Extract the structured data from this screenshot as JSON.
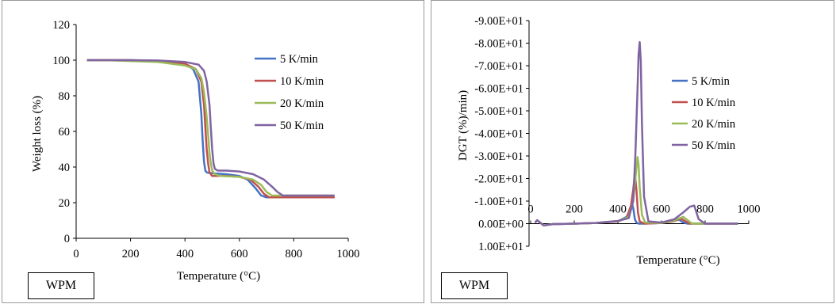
{
  "chart_data": [
    {
      "type": "line",
      "title": "",
      "xlabel": "Temperature (°C)",
      "ylabel": "Weight loss (%)",
      "xlim": [
        0,
        1000
      ],
      "ylim": [
        0,
        120
      ],
      "xticks": [
        "0",
        "200",
        "400",
        "600",
        "800",
        "1000"
      ],
      "yticks": [
        "0",
        "20",
        "40",
        "60",
        "80",
        "100",
        "120"
      ],
      "grid": false,
      "legend_position": "top-right",
      "sample_label": "WPM",
      "series": [
        {
          "name": "5 K/min",
          "color": "#4472C4",
          "x": [
            40,
            100,
            200,
            300,
            400,
            430,
            450,
            460,
            465,
            470,
            475,
            480,
            485,
            500,
            550,
            600,
            630,
            660,
            680,
            700,
            720,
            800,
            900,
            950
          ],
          "y": [
            100,
            100,
            100,
            99.5,
            98,
            95,
            88,
            70,
            55,
            43,
            38,
            37,
            36.8,
            36.5,
            36,
            35,
            33,
            28,
            24,
            23,
            23,
            23,
            23,
            23
          ]
        },
        {
          "name": "10 K/min",
          "color": "#C0504D",
          "x": [
            40,
            100,
            200,
            300,
            400,
            440,
            460,
            470,
            475,
            480,
            485,
            490,
            500,
            520,
            550,
            600,
            640,
            670,
            690,
            710,
            730,
            800,
            900,
            950
          ],
          "y": [
            100,
            100,
            100,
            99.5,
            98,
            95,
            88,
            75,
            62,
            50,
            42,
            37,
            35,
            35,
            35,
            34.5,
            33,
            29,
            25,
            23,
            23,
            23,
            23,
            23
          ]
        },
        {
          "name": "20 K/min",
          "color": "#9BBB59",
          "x": [
            40,
            100,
            200,
            300,
            350,
            400,
            440,
            460,
            470,
            480,
            485,
            490,
            495,
            500,
            510,
            530,
            600,
            650,
            680,
            700,
            720,
            740,
            800,
            900,
            950
          ],
          "y": [
            100,
            100,
            99.5,
            99,
            98,
            97,
            95,
            90,
            82,
            68,
            58,
            48,
            42,
            38,
            36,
            35,
            34.5,
            33,
            30,
            26,
            24,
            24,
            24,
            24,
            24
          ]
        },
        {
          "name": "50 K/min",
          "color": "#8064A2",
          "x": [
            40,
            100,
            200,
            300,
            400,
            450,
            470,
            480,
            490,
            495,
            500,
            505,
            510,
            520,
            550,
            600,
            650,
            690,
            720,
            740,
            760,
            780,
            800,
            900,
            950
          ],
          "y": [
            100,
            100,
            100,
            99.8,
            99,
            97.5,
            94,
            88,
            75,
            62,
            50,
            42,
            39,
            38,
            38,
            37.5,
            36,
            33,
            29,
            26,
            24,
            24,
            24,
            24,
            24
          ]
        }
      ]
    },
    {
      "type": "line",
      "title": "",
      "xlabel": "Temperature (°C)",
      "ylabel": "DGT (%)/min)",
      "xlim": [
        0,
        1000
      ],
      "ylim": [
        -90,
        10
      ],
      "y_axis_inverted": true,
      "xticks": [
        "0",
        "200",
        "400",
        "600",
        "800",
        "1000"
      ],
      "yticks": [
        "-9.00E+01",
        "-8.00E+01",
        "-7.00E+01",
        "-6.00E+01",
        "-5.00E+01",
        "-4.00E+01",
        "-3.00E+01",
        "-2.00E+01",
        "-1.00E+01",
        "0.00E+00",
        "1.00E+01"
      ],
      "grid": false,
      "legend_position": "right",
      "sample_label": "WPM",
      "series": [
        {
          "name": "5 K/min",
          "color": "#4472C4",
          "x": [
            20,
            30,
            60,
            100,
            200,
            300,
            400,
            440,
            455,
            465,
            472,
            478,
            485,
            495,
            520,
            600,
            650,
            680,
            700,
            720,
            800,
            950
          ],
          "y": [
            -0.5,
            -1.5,
            0.8,
            0.2,
            0,
            -0.3,
            -1,
            -3,
            -6,
            -9,
            -6,
            -2,
            -0.5,
            0,
            0,
            -0.3,
            -1,
            -1.8,
            -0.5,
            0,
            0,
            0
          ]
        },
        {
          "name": "10 K/min",
          "color": "#C0504D",
          "x": [
            20,
            30,
            60,
            100,
            200,
            300,
            400,
            440,
            460,
            470,
            478,
            485,
            492,
            500,
            520,
            600,
            650,
            690,
            710,
            730,
            800,
            950
          ],
          "y": [
            -0.5,
            -1.5,
            0.8,
            0.2,
            0,
            -0.3,
            -1,
            -2.5,
            -8,
            -15,
            -22,
            -15,
            -5,
            -1,
            0,
            -0.3,
            -1,
            -2.2,
            -1,
            0,
            0,
            0
          ]
        },
        {
          "name": "20 K/min",
          "color": "#9BBB59",
          "x": [
            20,
            30,
            60,
            100,
            200,
            300,
            400,
            450,
            470,
            480,
            490,
            495,
            500,
            510,
            525,
            600,
            660,
            700,
            720,
            740,
            800,
            950
          ],
          "y": [
            -0.5,
            -1.5,
            0.8,
            0.2,
            0,
            -0.3,
            -1.2,
            -3,
            -10,
            -20,
            -29.5,
            -26,
            -16,
            -4,
            -0.5,
            -0.3,
            -1.5,
            -3,
            -1.5,
            0,
            0,
            0
          ]
        },
        {
          "name": "50 K/min",
          "color": "#8064A2",
          "x": [
            20,
            30,
            60,
            100,
            200,
            300,
            400,
            450,
            470,
            480,
            490,
            495,
            500,
            505,
            510,
            520,
            540,
            600,
            660,
            700,
            730,
            750,
            770,
            800,
            950
          ],
          "y": [
            -0.5,
            -1.5,
            0.8,
            0.2,
            0,
            -0.3,
            -1.2,
            -2.5,
            -10,
            -30,
            -60,
            -75,
            -80.5,
            -72,
            -45,
            -12,
            -1,
            -0.5,
            -2,
            -5,
            -7.5,
            -8,
            -2,
            0,
            0
          ]
        }
      ]
    }
  ]
}
